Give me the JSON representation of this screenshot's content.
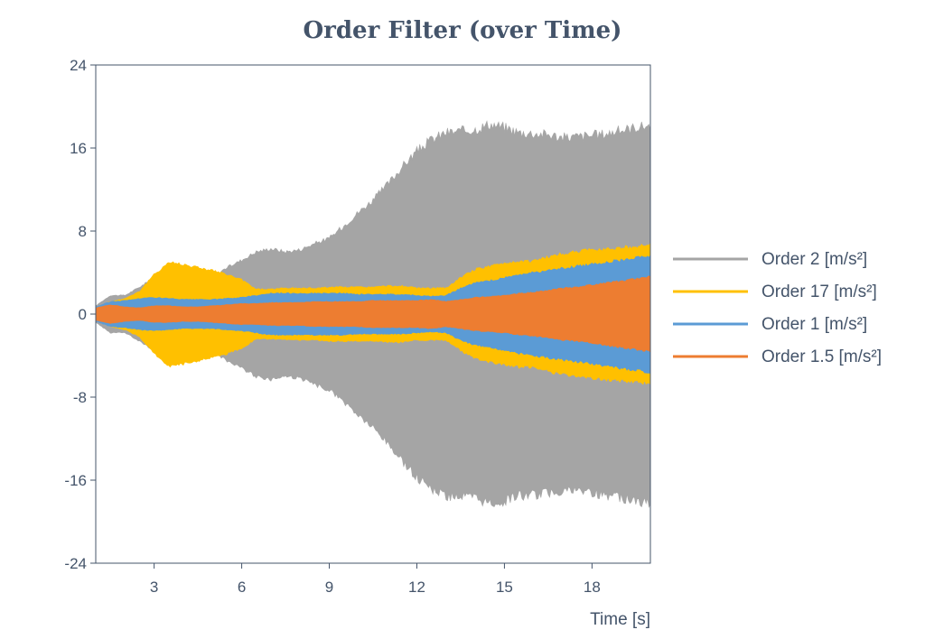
{
  "chart_data": {
    "type": "area",
    "title": "Order Filter (over Time)",
    "xlabel": "Time [s]",
    "ylabel": "",
    "xlim": [
      1,
      20
    ],
    "ylim": [
      -24,
      24
    ],
    "xticks": [
      3,
      6,
      9,
      12,
      15,
      18
    ],
    "yticks": [
      24,
      16,
      8,
      0,
      -8,
      -16,
      -24
    ],
    "legend_position": "right",
    "symmetric_envelope": true,
    "series": [
      {
        "name": "Order 2 [m/s²]",
        "color": "#a5a5a5",
        "x": [
          1,
          1.5,
          2,
          2.5,
          3,
          3.5,
          4,
          4.5,
          5,
          5.5,
          6,
          6.5,
          7,
          7.5,
          8,
          8.5,
          9,
          9.5,
          10,
          10.5,
          11,
          11.5,
          12,
          12.5,
          13,
          13.5,
          14,
          14.5,
          15,
          15.5,
          16,
          16.5,
          17,
          17.5,
          18,
          18.5,
          19,
          19.5,
          20
        ],
        "amplitude": [
          0.8,
          1.8,
          1.8,
          2.6,
          3.5,
          3.4,
          3.2,
          3.2,
          3.6,
          4.5,
          5.2,
          6.0,
          6.3,
          6.0,
          6.2,
          6.8,
          7.3,
          8.5,
          9.8,
          11.0,
          12.5,
          14.2,
          15.7,
          16.8,
          17.5,
          17.6,
          17.8,
          18.3,
          18.0,
          17.5,
          17.4,
          17.3,
          17.0,
          17.1,
          17.2,
          17.4,
          17.7,
          18.0,
          18.2
        ]
      },
      {
        "name": "Order 17 [m/s²]",
        "color": "#ffc000",
        "x": [
          1,
          1.5,
          2,
          2.5,
          3,
          3.5,
          4,
          4.5,
          5,
          5.5,
          6,
          6.5,
          7,
          7.5,
          8,
          8.5,
          9,
          9.5,
          10,
          10.5,
          11,
          11.5,
          12,
          12.5,
          13,
          13.5,
          14,
          14.5,
          15,
          15.5,
          16,
          16.5,
          17,
          17.5,
          18,
          18.5,
          19,
          19.5,
          20
        ],
        "amplitude": [
          0.6,
          1.2,
          1.5,
          2.2,
          3.8,
          5.0,
          4.8,
          4.5,
          4.2,
          3.8,
          3.3,
          2.4,
          2.4,
          2.5,
          2.5,
          2.5,
          2.6,
          2.6,
          2.6,
          2.6,
          2.7,
          2.7,
          2.5,
          2.5,
          2.5,
          3.5,
          4.3,
          4.6,
          4.9,
          5.1,
          5.1,
          5.5,
          5.8,
          6.0,
          6.2,
          6.3,
          6.4,
          6.5,
          6.7
        ]
      },
      {
        "name": "Order 1 [m/s²]",
        "color": "#5b9bd5",
        "x": [
          1,
          1.5,
          2,
          2.5,
          3,
          3.5,
          4,
          4.5,
          5,
          5.5,
          6,
          6.5,
          7,
          7.5,
          8,
          8.5,
          9,
          9.5,
          10,
          10.5,
          11,
          11.5,
          12,
          12.5,
          13,
          13.5,
          14,
          14.5,
          15,
          15.5,
          16,
          16.5,
          17,
          17.5,
          18,
          18.5,
          19,
          19.5,
          20
        ],
        "amplitude": [
          0.7,
          1.2,
          1.3,
          1.5,
          1.6,
          1.5,
          1.4,
          1.4,
          1.4,
          1.5,
          1.6,
          1.8,
          2.0,
          2.0,
          2.0,
          2.0,
          2.0,
          2.0,
          1.9,
          1.9,
          1.9,
          1.9,
          1.8,
          1.7,
          1.8,
          2.5,
          3.0,
          3.2,
          3.5,
          3.8,
          4.0,
          4.2,
          4.4,
          4.6,
          4.8,
          5.0,
          5.2,
          5.4,
          5.6
        ]
      },
      {
        "name": "Order 1.5 [m/s²]",
        "color": "#ed7d31",
        "x": [
          1,
          1.5,
          2,
          2.5,
          3,
          3.5,
          4,
          4.5,
          5,
          5.5,
          6,
          6.5,
          7,
          7.5,
          8,
          8.5,
          9,
          9.5,
          10,
          10.5,
          11,
          11.5,
          12,
          12.5,
          13,
          13.5,
          14,
          14.5,
          15,
          15.5,
          16,
          16.5,
          17,
          17.5,
          18,
          18.5,
          19,
          19.5,
          20
        ],
        "amplitude": [
          0.6,
          0.9,
          0.7,
          0.6,
          0.8,
          0.8,
          0.7,
          0.7,
          0.8,
          0.9,
          1.0,
          1.0,
          1.1,
          1.1,
          1.1,
          1.2,
          1.2,
          1.2,
          1.2,
          1.3,
          1.3,
          1.3,
          1.3,
          1.4,
          1.2,
          1.4,
          1.6,
          1.7,
          1.8,
          2.0,
          2.1,
          2.3,
          2.5,
          2.6,
          2.8,
          3.0,
          3.2,
          3.4,
          3.6
        ]
      }
    ]
  }
}
